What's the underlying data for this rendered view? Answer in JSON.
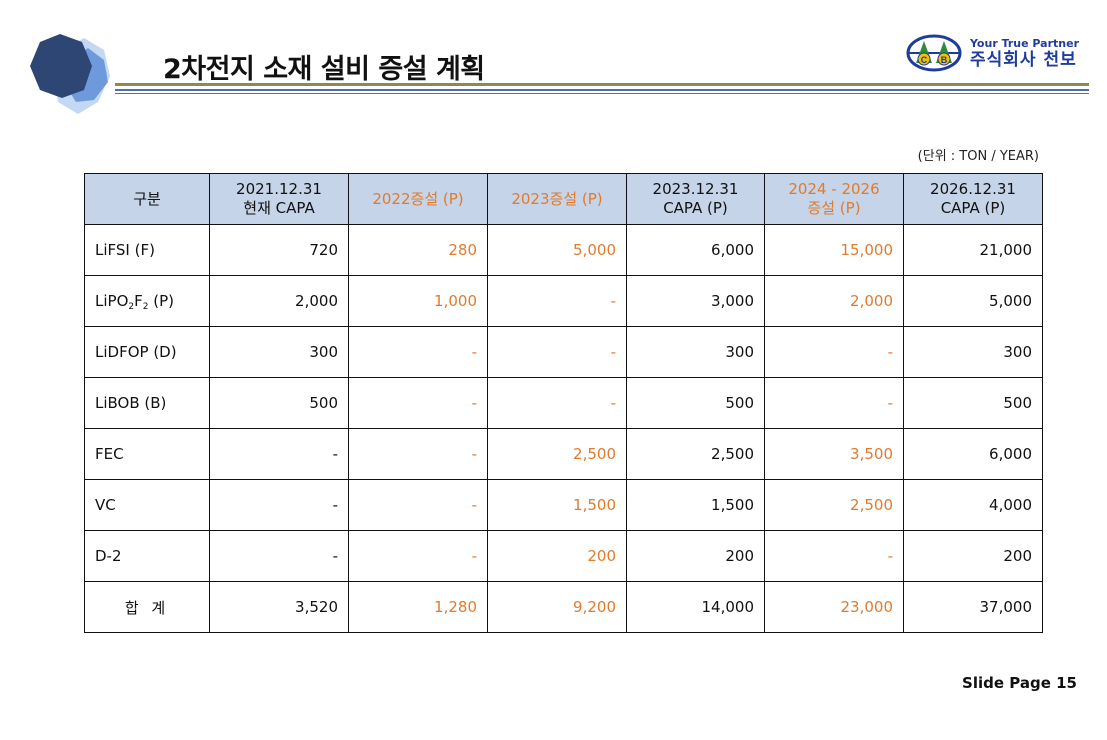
{
  "header": {
    "title": "2차전지 소재 설비 증설 계획",
    "tagline": "Your True Partner",
    "company_name": "주식회사 천보",
    "logo_letters": [
      "C",
      "B"
    ]
  },
  "unit_label": "(단위 : TON / YEAR)",
  "table": {
    "headers": [
      {
        "lines": [
          "구분"
        ],
        "highlight": false
      },
      {
        "lines": [
          "2021.12.31",
          "현재 CAPA"
        ],
        "highlight": false
      },
      {
        "lines": [
          "2022증설 (P)"
        ],
        "highlight": true
      },
      {
        "lines": [
          "2023증설 (P)"
        ],
        "highlight": true
      },
      {
        "lines": [
          "2023.12.31",
          "CAPA (P)"
        ],
        "highlight": false
      },
      {
        "lines": [
          "2024 - 2026",
          "증설 (P)"
        ],
        "highlight": true
      },
      {
        "lines": [
          "2026.12.31",
          "CAPA (P)"
        ],
        "highlight": false
      }
    ],
    "rows": [
      {
        "label": "LiFSI (F)",
        "values": [
          "720",
          "280",
          "5,000",
          "6,000",
          "15,000",
          "21,000"
        ]
      },
      {
        "label": "LiPO2F2 (P)",
        "values": [
          "2,000",
          "1,000",
          "-",
          "3,000",
          "2,000",
          "5,000"
        ]
      },
      {
        "label": "LiDFOP (D)",
        "values": [
          "300",
          "-",
          "-",
          "300",
          "-",
          "300"
        ]
      },
      {
        "label": "LiBOB (B)",
        "values": [
          "500",
          "-",
          "-",
          "500",
          "-",
          "500"
        ]
      },
      {
        "label": "FEC",
        "values": [
          "-",
          "-",
          "2,500",
          "2,500",
          "3,500",
          "6,000"
        ]
      },
      {
        "label": "VC",
        "values": [
          "-",
          "-",
          "1,500",
          "1,500",
          "2,500",
          "4,000"
        ]
      },
      {
        "label": "D-2",
        "values": [
          "-",
          "-",
          "200",
          "200",
          "-",
          "200"
        ]
      },
      {
        "label": "합 계",
        "values": [
          "3,520",
          "1,280",
          "9,200",
          "14,000",
          "23,000",
          "37,000"
        ],
        "total": true
      }
    ]
  },
  "footer": {
    "page_label": "Slide Page 15"
  },
  "colors": {
    "header_fill": "#c5d4e8",
    "highlight_text": "#e07b2d",
    "brand_blue": "#1f3c9a",
    "rule_olive": "#8a8a52",
    "rule_blue": "#4b6fb0"
  }
}
